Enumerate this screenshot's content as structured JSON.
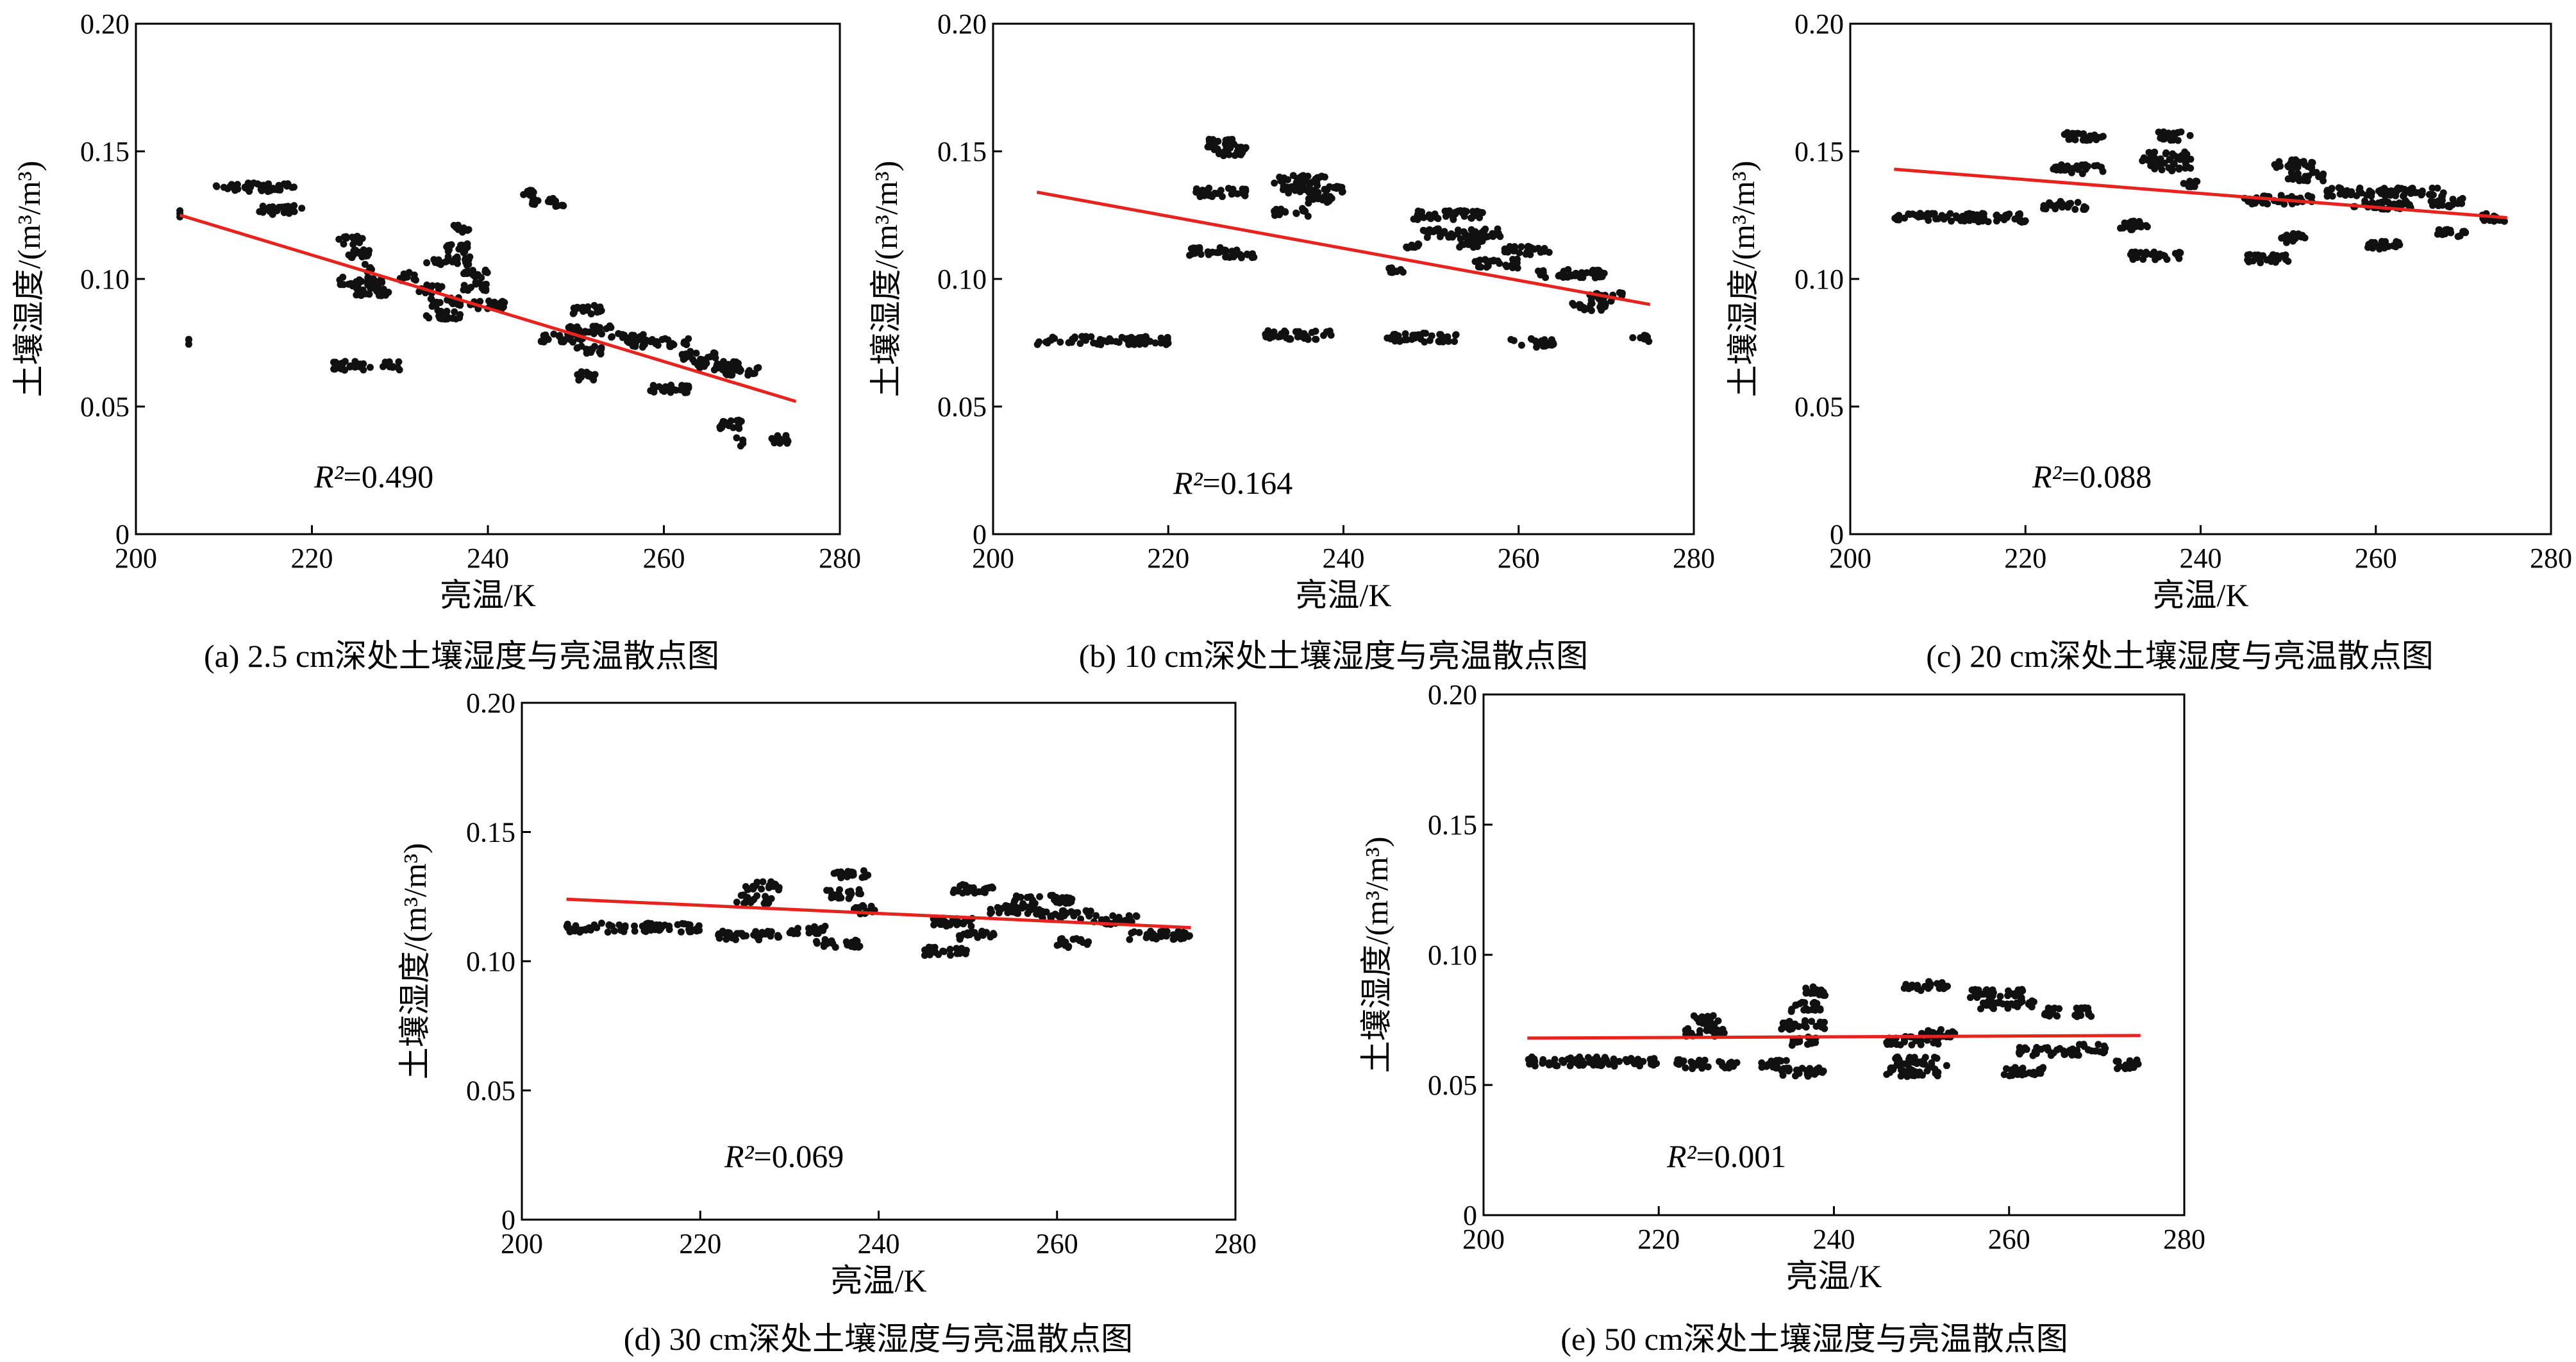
{
  "x_axis_label": "亮温/K",
  "y_axis_label": "土壤湿度/(m³/m³)",
  "charts": [
    {
      "id": "a",
      "caption": "(a) 2.5 cm深处土壤湿度与亮温散点图",
      "r2_symbol": "R²",
      "r2_value": "=0.490"
    },
    {
      "id": "b",
      "caption": "(b) 10 cm深处土壤湿度与亮温散点图",
      "r2_symbol": "R²",
      "r2_value": "=0.164"
    },
    {
      "id": "c",
      "caption": "(c) 20 cm深处土壤湿度与亮温散点图",
      "r2_symbol": "R²",
      "r2_value": "=0.088"
    },
    {
      "id": "d",
      "caption": "(d) 30 cm深处土壤湿度与亮温散点图",
      "r2_symbol": "R²",
      "r2_value": "=0.069"
    },
    {
      "id": "e",
      "caption": "(e) 50 cm深处土壤湿度与亮温散点图",
      "r2_symbol": "R²",
      "r2_value": "=0.001"
    }
  ],
  "chart_data": [
    {
      "type": "scatter",
      "title": "(a) 2.5 cm深处土壤湿度与亮温散点图",
      "xlabel": "亮温/K",
      "ylabel": "土壤湿度/(m³/m³)",
      "xlim": [
        200,
        280
      ],
      "ylim": [
        0,
        0.2
      ],
      "xticks": [
        "200",
        "220",
        "240",
        "260",
        "280"
      ],
      "yticks": [
        "0",
        "0.05",
        "0.10",
        "0.15",
        "0.20"
      ],
      "grid": false,
      "fit_line": {
        "x": [
          205,
          275
        ],
        "y": [
          0.125,
          0.052
        ],
        "color": "#e8231d"
      },
      "r2": 0.49,
      "clusters": [
        {
          "x": [
            205,
            205
          ],
          "y": 0.125
        },
        {
          "x": [
            206,
            206
          ],
          "y": 0.075
        },
        {
          "x": [
            209,
            218
          ],
          "y": 0.136
        },
        {
          "x": [
            214,
            219
          ],
          "y": 0.127
        },
        {
          "x": [
            222,
            227
          ],
          "y": 0.066
        },
        {
          "x": [
            228,
            230
          ],
          "y": 0.066
        },
        {
          "x": [
            223,
            226
          ],
          "y": 0.115
        },
        {
          "x": [
            224,
            227
          ],
          "y": 0.11
        },
        {
          "x": [
            226,
            227
          ],
          "y": 0.104
        },
        {
          "x": [
            223,
            228
          ],
          "y": 0.099
        },
        {
          "x": [
            225,
            229
          ],
          "y": 0.095
        },
        {
          "x": [
            230,
            232
          ],
          "y": 0.101
        },
        {
          "x": [
            232,
            235
          ],
          "y": 0.096
        },
        {
          "x": [
            233,
            237
          ],
          "y": 0.091
        },
        {
          "x": [
            233,
            237
          ],
          "y": 0.086
        },
        {
          "x": [
            236,
            238
          ],
          "y": 0.12
        },
        {
          "x": [
            235,
            238
          ],
          "y": 0.112
        },
        {
          "x": [
            233,
            238
          ],
          "y": 0.107
        },
        {
          "x": [
            237,
            240
          ],
          "y": 0.102
        },
        {
          "x": [
            237,
            240
          ],
          "y": 0.097
        },
        {
          "x": [
            238,
            242
          ],
          "y": 0.09
        },
        {
          "x": [
            244,
            246
          ],
          "y": 0.134
        },
        {
          "x": [
            245,
            249
          ],
          "y": 0.13
        },
        {
          "x": [
            246,
            251
          ],
          "y": 0.077
        },
        {
          "x": [
            249,
            253
          ],
          "y": 0.088
        },
        {
          "x": [
            249,
            254
          ],
          "y": 0.08
        },
        {
          "x": [
            250,
            253
          ],
          "y": 0.072
        },
        {
          "x": [
            250,
            253
          ],
          "y": 0.062
        },
        {
          "x": [
            254,
            258
          ],
          "y": 0.077
        },
        {
          "x": [
            256,
            263
          ],
          "y": 0.075
        },
        {
          "x": [
            258,
            263
          ],
          "y": 0.057
        },
        {
          "x": [
            262,
            266
          ],
          "y": 0.07
        },
        {
          "x": [
            263,
            269
          ],
          "y": 0.066
        },
        {
          "x": [
            267,
            271
          ],
          "y": 0.064
        },
        {
          "x": [
            266,
            269
          ],
          "y": 0.043
        },
        {
          "x": [
            268,
            269
          ],
          "y": 0.036
        },
        {
          "x": [
            272,
            275
          ],
          "y": 0.037
        }
      ]
    },
    {
      "type": "scatter",
      "title": "(b) 10 cm深处土壤湿度与亮温散点图",
      "xlabel": "亮温/K",
      "ylabel": "土壤湿度/(m³/m³)",
      "xlim": [
        200,
        280
      ],
      "ylim": [
        0,
        0.2
      ],
      "xticks": [
        "200",
        "220",
        "240",
        "260",
        "280"
      ],
      "yticks": [
        "0",
        "0.05",
        "0.10",
        "0.15",
        "0.20"
      ],
      "grid": false,
      "fit_line": {
        "x": [
          205,
          275
        ],
        "y": [
          0.134,
          0.09
        ],
        "color": "#e8231d"
      },
      "r2": 0.164,
      "clusters": [
        {
          "x": [
            205,
            220
          ],
          "y": 0.076
        },
        {
          "x": [
            222,
            226
          ],
          "y": 0.111
        },
        {
          "x": [
            226,
            230
          ],
          "y": 0.11
        },
        {
          "x": [
            224,
            228
          ],
          "y": 0.153
        },
        {
          "x": [
            225,
            229
          ],
          "y": 0.15
        },
        {
          "x": [
            223,
            229
          ],
          "y": 0.134
        },
        {
          "x": [
            231,
            239
          ],
          "y": 0.078
        },
        {
          "x": [
            232,
            238
          ],
          "y": 0.139
        },
        {
          "x": [
            233,
            240
          ],
          "y": 0.135
        },
        {
          "x": [
            232,
            236
          ],
          "y": 0.126
        },
        {
          "x": [
            236,
            239
          ],
          "y": 0.131
        },
        {
          "x": [
            245,
            247
          ],
          "y": 0.104
        },
        {
          "x": [
            245,
            253
          ],
          "y": 0.077
        },
        {
          "x": [
            247,
            249
          ],
          "y": 0.112
        },
        {
          "x": [
            248,
            256
          ],
          "y": 0.125
        },
        {
          "x": [
            249,
            258
          ],
          "y": 0.118
        },
        {
          "x": [
            253,
            256
          ],
          "y": 0.114
        },
        {
          "x": [
            255,
            260
          ],
          "y": 0.106
        },
        {
          "x": [
            258,
            264
          ],
          "y": 0.111
        },
        {
          "x": [
            259,
            264
          ],
          "y": 0.075
        },
        {
          "x": [
            262,
            270
          ],
          "y": 0.102
        },
        {
          "x": [
            266,
            270
          ],
          "y": 0.089
        },
        {
          "x": [
            268,
            272
          ],
          "y": 0.093
        },
        {
          "x": [
            273,
            275
          ],
          "y": 0.077
        }
      ]
    },
    {
      "type": "scatter",
      "title": "(c) 20 cm深处土壤湿度与亮温散点图",
      "xlabel": "亮温/K",
      "ylabel": "土壤湿度/(m³/m³)",
      "xlim": [
        200,
        280
      ],
      "ylim": [
        0,
        0.2
      ],
      "xticks": [
        "200",
        "220",
        "240",
        "260",
        "280"
      ],
      "yticks": [
        "0",
        "0.05",
        "0.10",
        "0.15",
        "0.20"
      ],
      "grid": false,
      "fit_line": {
        "x": [
          205,
          275
        ],
        "y": [
          0.143,
          0.124
        ],
        "color": "#e8231d"
      },
      "r2": 0.088,
      "clusters": [
        {
          "x": [
            205,
            220
          ],
          "y": 0.124
        },
        {
          "x": [
            222,
            227
          ],
          "y": 0.129
        },
        {
          "x": [
            223,
            229
          ],
          "y": 0.143
        },
        {
          "x": [
            224,
            229
          ],
          "y": 0.156
        },
        {
          "x": [
            230,
            234
          ],
          "y": 0.121
        },
        {
          "x": [
            232,
            238
          ],
          "y": 0.109
        },
        {
          "x": [
            233,
            239
          ],
          "y": 0.148
        },
        {
          "x": [
            234,
            239
          ],
          "y": 0.144
        },
        {
          "x": [
            235,
            239
          ],
          "y": 0.156
        },
        {
          "x": [
            238,
            240
          ],
          "y": 0.137
        },
        {
          "x": [
            245,
            250
          ],
          "y": 0.108
        },
        {
          "x": [
            245,
            253
          ],
          "y": 0.131
        },
        {
          "x": [
            248,
            253
          ],
          "y": 0.145
        },
        {
          "x": [
            250,
            254
          ],
          "y": 0.14
        },
        {
          "x": [
            249,
            252
          ],
          "y": 0.116
        },
        {
          "x": [
            254,
            262
          ],
          "y": 0.134
        },
        {
          "x": [
            257,
            264
          ],
          "y": 0.129
        },
        {
          "x": [
            259,
            263
          ],
          "y": 0.113
        },
        {
          "x": [
            262,
            268
          ],
          "y": 0.134
        },
        {
          "x": [
            266,
            270
          ],
          "y": 0.13
        },
        {
          "x": [
            267,
            271
          ],
          "y": 0.118
        },
        {
          "x": [
            272,
            275
          ],
          "y": 0.124
        }
      ]
    },
    {
      "type": "scatter",
      "title": "(d) 30 cm深处土壤湿度与亮温散点图",
      "xlabel": "亮温/K",
      "ylabel": "土壤湿度/(m³/m³)",
      "xlim": [
        200,
        280
      ],
      "ylim": [
        0,
        0.2
      ],
      "xticks": [
        "200",
        "220",
        "240",
        "260",
        "280"
      ],
      "yticks": [
        "0",
        "0.05",
        "0.10",
        "0.15",
        "0.20"
      ],
      "grid": false,
      "fit_line": {
        "x": [
          205,
          275
        ],
        "y": [
          0.124,
          0.113
        ],
        "color": "#e8231d"
      },
      "r2": 0.069,
      "clusters": [
        {
          "x": [
            205,
            220
          ],
          "y": 0.113
        },
        {
          "x": [
            222,
            229
          ],
          "y": 0.11
        },
        {
          "x": [
            224,
            228
          ],
          "y": 0.124
        },
        {
          "x": [
            225,
            229
          ],
          "y": 0.129
        },
        {
          "x": [
            230,
            234
          ],
          "y": 0.112
        },
        {
          "x": [
            233,
            238
          ],
          "y": 0.107
        },
        {
          "x": [
            234,
            238
          ],
          "y": 0.126
        },
        {
          "x": [
            235,
            239
          ],
          "y": 0.134
        },
        {
          "x": [
            237,
            240
          ],
          "y": 0.12
        },
        {
          "x": [
            245,
            250
          ],
          "y": 0.104
        },
        {
          "x": [
            246,
            251
          ],
          "y": 0.115
        },
        {
          "x": [
            248,
            253
          ],
          "y": 0.128
        },
        {
          "x": [
            249,
            253
          ],
          "y": 0.11
        },
        {
          "x": [
            252,
            258
          ],
          "y": 0.12
        },
        {
          "x": [
            255,
            262
          ],
          "y": 0.124
        },
        {
          "x": [
            258,
            264
          ],
          "y": 0.118
        },
        {
          "x": [
            260,
            264
          ],
          "y": 0.107
        },
        {
          "x": [
            264,
            269
          ],
          "y": 0.116
        },
        {
          "x": [
            268,
            275
          ],
          "y": 0.11
        }
      ]
    },
    {
      "type": "scatter",
      "title": "(e) 50 cm深处土壤湿度与亮温散点图",
      "xlabel": "亮温/K",
      "ylabel": "土壤湿度/(m³/m³)",
      "xlim": [
        200,
        280
      ],
      "ylim": [
        0,
        0.2
      ],
      "xticks": [
        "200",
        "220",
        "240",
        "260",
        "280"
      ],
      "yticks": [
        "0",
        "0.05",
        "0.10",
        "0.15",
        "0.20"
      ],
      "grid": false,
      "fit_line": {
        "x": [
          205,
          275
        ],
        "y": [
          0.068,
          0.069
        ],
        "color": "#e8231d"
      },
      "r2": 0.001,
      "clusters": [
        {
          "x": [
            205,
            220
          ],
          "y": 0.059
        },
        {
          "x": [
            222,
            229
          ],
          "y": 0.058
        },
        {
          "x": [
            223,
            228
          ],
          "y": 0.07
        },
        {
          "x": [
            224,
            227
          ],
          "y": 0.075
        },
        {
          "x": [
            231,
            235
          ],
          "y": 0.058
        },
        {
          "x": [
            234,
            239
          ],
          "y": 0.055
        },
        {
          "x": [
            234,
            239
          ],
          "y": 0.073
        },
        {
          "x": [
            235,
            239
          ],
          "y": 0.08
        },
        {
          "x": [
            236,
            239
          ],
          "y": 0.086
        },
        {
          "x": [
            235,
            238
          ],
          "y": 0.067
        },
        {
          "x": [
            246,
            252
          ],
          "y": 0.055
        },
        {
          "x": [
            247,
            253
          ],
          "y": 0.059
        },
        {
          "x": [
            246,
            252
          ],
          "y": 0.067
        },
        {
          "x": [
            248,
            253
          ],
          "y": 0.088
        },
        {
          "x": [
            250,
            254
          ],
          "y": 0.07
        },
        {
          "x": [
            255,
            262
          ],
          "y": 0.085
        },
        {
          "x": [
            256,
            263
          ],
          "y": 0.081
        },
        {
          "x": [
            259,
            264
          ],
          "y": 0.055
        },
        {
          "x": [
            261,
            268
          ],
          "y": 0.063
        },
        {
          "x": [
            264,
            270
          ],
          "y": 0.078
        },
        {
          "x": [
            268,
            271
          ],
          "y": 0.064
        },
        {
          "x": [
            272,
            275
          ],
          "y": 0.058
        }
      ]
    }
  ]
}
